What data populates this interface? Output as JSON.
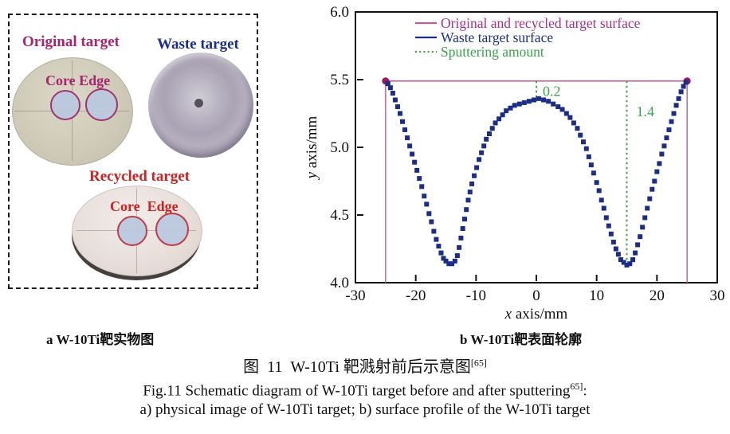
{
  "panel_a": {
    "original_target_label": "Original target",
    "waste_target_label": "Waste target",
    "recycled_target_label": "Recycled target",
    "core_label": "Core",
    "edge_label": "Edge",
    "caption": "a W-10Ti靶实物图"
  },
  "panel_b": {
    "caption": "b W-10Ti靶表面轮廓"
  },
  "figure_caption": {
    "zh": "图  11  W-10Ti 靶溅射前后示意图",
    "zh_ref": "[65]",
    "en_line1": "Fig.11 Schematic diagram of W-10Ti target before and after sputtering",
    "en_ref": "65]",
    "en_tail": ":",
    "en_line2": "a) physical image of W-10Ti target; b) surface profile of the W-10Ti target"
  },
  "colors": {
    "magenta_label": "#a8246e",
    "navy_label": "#1b2f8a",
    "red_label": "#cc2222",
    "frame": "#111111"
  },
  "chart_data": {
    "type": "scatter",
    "title": "",
    "xlabel_italic": "x",
    "xlabel_rest": " axis/mm",
    "ylabel_italic": "y",
    "ylabel_rest": " axis/mm",
    "xlim": [
      -30,
      30
    ],
    "ylim": [
      4.0,
      6.0
    ],
    "xticks": [
      "-30",
      "-20",
      "-10",
      "0",
      "10",
      "20",
      "30"
    ],
    "yticks": [
      "4.0",
      "4.5",
      "5.0",
      "5.5",
      "6.0"
    ],
    "grid": false,
    "legend_position": "top-inside",
    "legend": [
      {
        "label": "Original and recycled target surface",
        "color": "#a8308c",
        "line_color": "#b55f94",
        "style": "solid"
      },
      {
        "label": "Waste target surface",
        "color": "#1b2f8a",
        "line_color": "#1b2d87",
        "style": "solid"
      },
      {
        "label": "Sputtering amount",
        "color": "#3aa34b",
        "line_color": "#3aa34b",
        "style": "dotted"
      }
    ],
    "original_recycled_surface": {
      "y": 5.49,
      "x_start": -25,
      "x_end": 25,
      "drop_to": 4.0,
      "line_color": "#b55f94",
      "endpoint_color": "#991663",
      "endpoints": [
        [
          -25,
          5.49
        ],
        [
          25,
          5.49
        ]
      ]
    },
    "sputtering_annotations": [
      {
        "x": 0,
        "from_y": 5.49,
        "to_y": 5.34,
        "label": "0.2",
        "label_dx": 8,
        "label_y": 5.415
      },
      {
        "x": 15,
        "from_y": 5.49,
        "to_y": 4.15,
        "label": "1.4",
        "label_dx": 12,
        "label_y": 5.265
      }
    ],
    "waste_surface": {
      "marker": "square",
      "color": "#1b2d87",
      "points": [
        [
          -24.6,
          5.47
        ],
        [
          -24.2,
          5.44
        ],
        [
          -23.8,
          5.4
        ],
        [
          -23.4,
          5.35
        ],
        [
          -23.0,
          5.3
        ],
        [
          -22.6,
          5.25
        ],
        [
          -22.2,
          5.19
        ],
        [
          -21.8,
          5.13
        ],
        [
          -21.4,
          5.07
        ],
        [
          -21.0,
          5.01
        ],
        [
          -20.6,
          4.95
        ],
        [
          -20.2,
          4.89
        ],
        [
          -19.8,
          4.83
        ],
        [
          -19.4,
          4.77
        ],
        [
          -19.0,
          4.71
        ],
        [
          -18.6,
          4.64
        ],
        [
          -18.2,
          4.58
        ],
        [
          -17.8,
          4.51
        ],
        [
          -17.4,
          4.45
        ],
        [
          -17.0,
          4.38
        ],
        [
          -16.6,
          4.32
        ],
        [
          -16.2,
          4.27
        ],
        [
          -15.8,
          4.22
        ],
        [
          -15.4,
          4.18
        ],
        [
          -15.0,
          4.16
        ],
        [
          -14.5,
          4.14
        ],
        [
          -14.0,
          4.14
        ],
        [
          -13.5,
          4.16
        ],
        [
          -13.1,
          4.2
        ],
        [
          -12.8,
          4.26
        ],
        [
          -12.5,
          4.33
        ],
        [
          -12.2,
          4.4
        ],
        [
          -11.9,
          4.47
        ],
        [
          -11.6,
          4.54
        ],
        [
          -11.3,
          4.61
        ],
        [
          -11.0,
          4.67
        ],
        [
          -10.7,
          4.73
        ],
        [
          -10.3,
          4.79
        ],
        [
          -9.9,
          4.85
        ],
        [
          -9.5,
          4.91
        ],
        [
          -9.1,
          4.96
        ],
        [
          -8.7,
          5.01
        ],
        [
          -8.3,
          5.06
        ],
        [
          -7.8,
          5.1
        ],
        [
          -7.3,
          5.14
        ],
        [
          -6.8,
          5.18
        ],
        [
          -6.2,
          5.21
        ],
        [
          -5.6,
          5.24
        ],
        [
          -5.0,
          5.27
        ],
        [
          -4.3,
          5.29
        ],
        [
          -3.6,
          5.31
        ],
        [
          -2.8,
          5.32
        ],
        [
          -2.0,
          5.33
        ],
        [
          -1.2,
          5.34
        ],
        [
          -0.4,
          5.35
        ],
        [
          0.4,
          5.36
        ],
        [
          1.2,
          5.35
        ],
        [
          2.0,
          5.34
        ],
        [
          2.8,
          5.32
        ],
        [
          3.6,
          5.3
        ],
        [
          4.3,
          5.28
        ],
        [
          5.0,
          5.25
        ],
        [
          5.6,
          5.22
        ],
        [
          6.2,
          5.18
        ],
        [
          6.8,
          5.14
        ],
        [
          7.3,
          5.09
        ],
        [
          7.8,
          5.04
        ],
        [
          8.3,
          4.99
        ],
        [
          8.7,
          4.93
        ],
        [
          9.1,
          4.87
        ],
        [
          9.5,
          4.81
        ],
        [
          10.0,
          4.74
        ],
        [
          10.4,
          4.68
        ],
        [
          10.8,
          4.61
        ],
        [
          11.2,
          4.55
        ],
        [
          11.6,
          4.48
        ],
        [
          12.0,
          4.42
        ],
        [
          12.4,
          4.36
        ],
        [
          12.8,
          4.3
        ],
        [
          13.2,
          4.25
        ],
        [
          13.6,
          4.21
        ],
        [
          14.0,
          4.17
        ],
        [
          14.5,
          4.15
        ],
        [
          15.0,
          4.13
        ],
        [
          15.5,
          4.14
        ],
        [
          16.0,
          4.17
        ],
        [
          16.4,
          4.22
        ],
        [
          16.8,
          4.28
        ],
        [
          17.2,
          4.34
        ],
        [
          17.6,
          4.41
        ],
        [
          18.0,
          4.48
        ],
        [
          18.4,
          4.55
        ],
        [
          18.8,
          4.62
        ],
        [
          19.2,
          4.69
        ],
        [
          19.6,
          4.75
        ],
        [
          20.0,
          4.82
        ],
        [
          20.4,
          4.88
        ],
        [
          20.8,
          4.95
        ],
        [
          21.2,
          5.01
        ],
        [
          21.6,
          5.07
        ],
        [
          22.0,
          5.13
        ],
        [
          22.4,
          5.19
        ],
        [
          22.8,
          5.25
        ],
        [
          23.2,
          5.31
        ],
        [
          23.6,
          5.36
        ],
        [
          24.0,
          5.41
        ],
        [
          24.4,
          5.45
        ],
        [
          24.8,
          5.48
        ]
      ]
    }
  }
}
